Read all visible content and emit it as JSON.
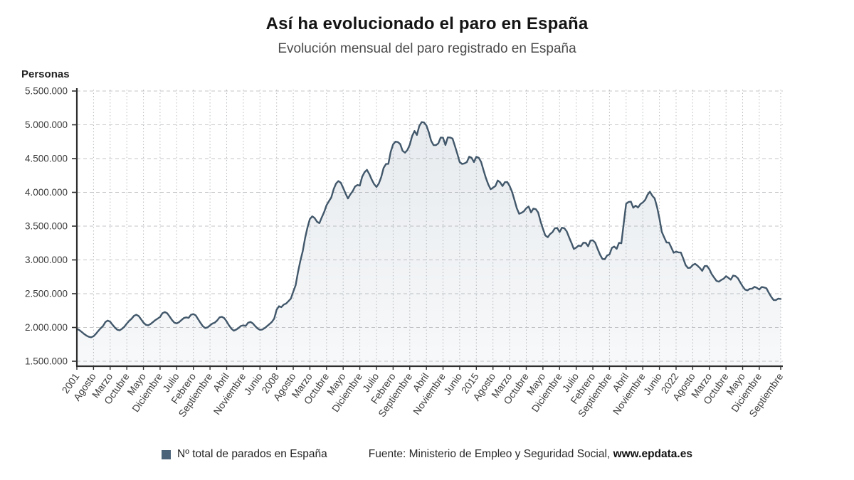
{
  "header": {
    "title": "Así ha evolucionado el paro en España",
    "subtitle": "Evolución mensual del paro registrado en España"
  },
  "y_axis": {
    "label": "Personas",
    "tick_values": [
      5500000,
      5000000,
      4500000,
      4000000,
      3500000,
      3000000,
      2500000,
      2000000,
      1500000
    ],
    "tick_labels": [
      "5.500.000",
      "5.000.000",
      "4.500.000",
      "4.000.000",
      "3.500.000",
      "3.000.000",
      "2.500.000",
      "2.000.000",
      "1.500.000"
    ]
  },
  "x_axis": {
    "tick_labels": [
      "2001",
      "Agosto",
      "Marzo",
      "Octubre",
      "Mayo",
      "Diciembre",
      "Julio",
      "Febrero",
      "Septiembre",
      "Abril",
      "Noviembre",
      "Junio",
      "2008",
      "Agosto",
      "Marzo",
      "Octubre",
      "Mayo",
      "Diciembre",
      "Julio",
      "Febrero",
      "Septiembre",
      "Abril",
      "Noviembre",
      "Junio",
      "2015",
      "Agosto",
      "Marzo",
      "Octubre",
      "Mayo",
      "Diciembre",
      "Julio",
      "Febrero",
      "Septiembre",
      "Abril",
      "Noviembre",
      "Junio",
      "2022",
      "Agosto",
      "Marzo",
      "Octubre",
      "Mayo",
      "Diciembre",
      "Septiembre"
    ],
    "tick_month_offsets": [
      0,
      7,
      14,
      21,
      28,
      35,
      42,
      49,
      56,
      63,
      70,
      77,
      84,
      91,
      98,
      105,
      112,
      119,
      126,
      133,
      140,
      147,
      154,
      161,
      168,
      175,
      182,
      189,
      196,
      203,
      210,
      217,
      224,
      231,
      238,
      245,
      252,
      259,
      266,
      273,
      280,
      287,
      296
    ]
  },
  "legend": {
    "label": "Nº total de parados en España",
    "color": "#4a6378"
  },
  "source": {
    "prefix": "Fuente: Ministerio de Empleo y Seguridad Social,",
    "site": "www.epdata.es"
  },
  "colors": {
    "line": "#42586b",
    "fill_top": "rgba(104,128,150,0.16)",
    "fill_bottom": "rgba(104,128,150,0.05)",
    "h_grid": "#c4c6c8",
    "v_grid": "#babdc0",
    "axis": "#2e2e2e",
    "tick_text": "#3c3c3c"
  },
  "chart_data": {
    "type": "area",
    "title": "Así ha evolucionado el paro en España",
    "subtitle": "Evolución mensual del paro registrado en España",
    "series_name": "Nº total de parados en España",
    "unit": "personas",
    "frequency": "monthly",
    "start_month": "2001-01",
    "end_month": "2025-09",
    "ylabel": "Personas",
    "ylim": [
      1500000,
      5500000
    ],
    "grid": true,
    "legend_position": "bottom",
    "values": [
      1980000,
      1962000,
      1935000,
      1905000,
      1880000,
      1862000,
      1855000,
      1870000,
      1905000,
      1948000,
      1988000,
      2022000,
      2080000,
      2102000,
      2085000,
      2040000,
      1998000,
      1966000,
      1958000,
      1980000,
      2012000,
      2058000,
      2098000,
      2128000,
      2172000,
      2188000,
      2170000,
      2122000,
      2072000,
      2040000,
      2032000,
      2052000,
      2080000,
      2110000,
      2132000,
      2155000,
      2212000,
      2228000,
      2210000,
      2162000,
      2112000,
      2072000,
      2060000,
      2080000,
      2110000,
      2140000,
      2150000,
      2142000,
      2188000,
      2198000,
      2178000,
      2122000,
      2068000,
      2018000,
      1992000,
      2002000,
      2030000,
      2058000,
      2072000,
      2103000,
      2149000,
      2158000,
      2138000,
      2088000,
      2030000,
      1982000,
      1953000,
      1968000,
      1992000,
      2022000,
      2032000,
      2023000,
      2069000,
      2082000,
      2060000,
      2020000,
      1985000,
      1965000,
      1970000,
      1990000,
      2020000,
      2050000,
      2082000,
      2130000,
      2262000,
      2315000,
      2301000,
      2339000,
      2354000,
      2390000,
      2427000,
      2530000,
      2625000,
      2818000,
      2989000,
      3129000,
      3328000,
      3482000,
      3605000,
      3645000,
      3620000,
      3565000,
      3544000,
      3629000,
      3709000,
      3808000,
      3869000,
      3924000,
      4048000,
      4131000,
      4167000,
      4142000,
      4066000,
      3982000,
      3909000,
      3970000,
      4018000,
      4086000,
      4110000,
      4100000,
      4231000,
      4299000,
      4334000,
      4269000,
      4190000,
      4122000,
      4080000,
      4131000,
      4227000,
      4361000,
      4420000,
      4422000,
      4600000,
      4712000,
      4751000,
      4744000,
      4714000,
      4615000,
      4587000,
      4626000,
      4705000,
      4834000,
      4908000,
      4849000,
      4981000,
      5040000,
      5035000,
      4989000,
      4891000,
      4764000,
      4699000,
      4699000,
      4724000,
      4811000,
      4809000,
      4701000,
      4814000,
      4812000,
      4796000,
      4684000,
      4572000,
      4450000,
      4420000,
      4428000,
      4448000,
      4527000,
      4512000,
      4448000,
      4526000,
      4512000,
      4452000,
      4333000,
      4215000,
      4120000,
      4046000,
      4068000,
      4094000,
      4176000,
      4149000,
      4094000,
      4151000,
      4153000,
      4095000,
      4011000,
      3891000,
      3767000,
      3683000,
      3697000,
      3720000,
      3765000,
      3790000,
      3703000,
      3760000,
      3751000,
      3702000,
      3573000,
      3461000,
      3363000,
      3336000,
      3382000,
      3410000,
      3467000,
      3474000,
      3413000,
      3477000,
      3470000,
      3423000,
      3336000,
      3252000,
      3162000,
      3182000,
      3213000,
      3203000,
      3255000,
      3253000,
      3202000,
      3286000,
      3289000,
      3255000,
      3164000,
      3079000,
      3016000,
      3011000,
      3066000,
      3080000,
      3178000,
      3198000,
      3164000,
      3254000,
      3246000,
      3548000,
      3831000,
      3858000,
      3863000,
      3773000,
      3803000,
      3776000,
      3826000,
      3851000,
      3888000,
      3964000,
      4009000,
      3950000,
      3911000,
      3781000,
      3614000,
      3416000,
      3334000,
      3258000,
      3257000,
      3183000,
      3106000,
      3123000,
      3112000,
      3109000,
      3023000,
      2923000,
      2881000,
      2884000,
      2924000,
      2942000,
      2915000,
      2881000,
      2838000,
      2908000,
      2911000,
      2862000,
      2788000,
      2739000,
      2689000,
      2678000,
      2703000,
      2722000,
      2759000,
      2735000,
      2707000,
      2768000,
      2760000,
      2727000,
      2667000,
      2608000,
      2561000,
      2550000,
      2572000,
      2575000,
      2602000,
      2586000,
      2561000,
      2599000,
      2593000,
      2580000,
      2513000,
      2455000,
      2406000,
      2405000,
      2427000,
      2422000
    ]
  }
}
